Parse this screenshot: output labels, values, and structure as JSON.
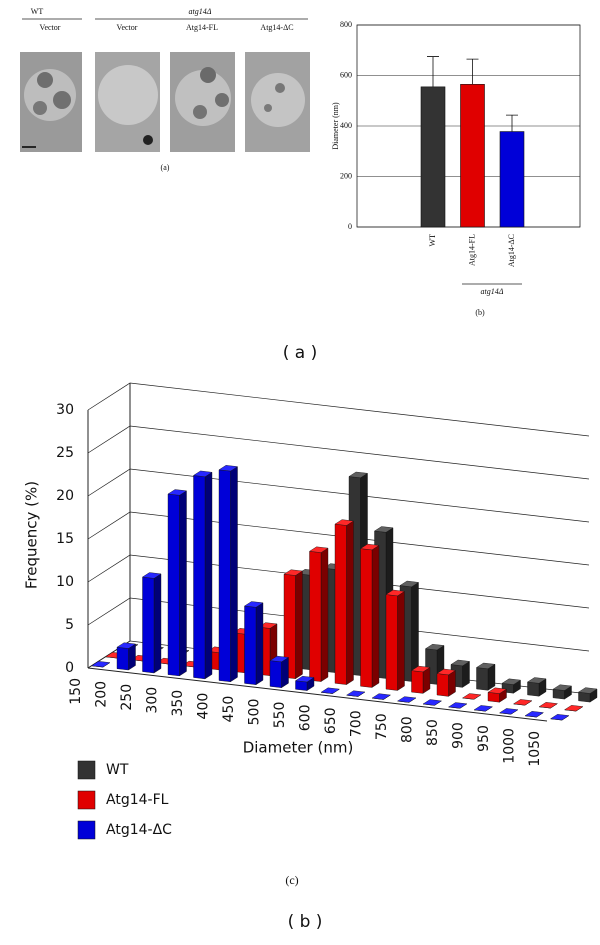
{
  "figure_a": {
    "group_labels": [
      "WT",
      "atg14Δ"
    ],
    "labels": [
      "Vector",
      "Vector",
      "Atg14-FL",
      "Atg14-ΔC"
    ],
    "caption": "(a)"
  },
  "chart_data": [
    {
      "type": "bar",
      "y_label": "Diameter (nm)",
      "categories": [
        "WT",
        "Atg14-FL",
        "Atg14-ΔC"
      ],
      "values": [
        555,
        565,
        378
      ],
      "errors": [
        120,
        100,
        65
      ],
      "colors": [
        "#333333",
        "#e00000",
        "#0000d8"
      ],
      "group_label": "atg14Δ",
      "caption": "(b)",
      "ylim": [
        0,
        800
      ],
      "yticks": [
        0,
        200,
        400,
        600,
        800
      ],
      "grid": true
    },
    {
      "type": "bar3d",
      "x_label": "Diameter (nm)",
      "y_label": "Frequency (%)",
      "caption": "(c)",
      "x": [
        150,
        200,
        250,
        300,
        350,
        400,
        450,
        500,
        550,
        600,
        650,
        700,
        750,
        800,
        850,
        900,
        950,
        1000,
        1050
      ],
      "series": [
        {
          "name": "WT",
          "color": "#333333",
          "values": [
            0,
            0,
            0,
            0,
            0,
            0,
            0,
            11,
            12,
            23,
            17,
            11,
            4,
            2.5,
            2.5,
            1,
            1.5,
            1,
            1
          ]
        },
        {
          "name": "Atg14-FL",
          "color": "#e00000",
          "values": [
            0,
            0,
            0,
            0,
            2,
            4.5,
            5.5,
            12,
            15,
            18.5,
            16,
            11,
            2.5,
            2.5,
            0,
            1,
            0,
            0,
            0
          ]
        },
        {
          "name": "Atg14-ΔC",
          "color": "#0000d8",
          "values": [
            0,
            2.5,
            11,
            21,
            23.5,
            24.5,
            9,
            3,
            1,
            0,
            0,
            0,
            0,
            0,
            0,
            0,
            0,
            0,
            0
          ]
        }
      ],
      "ylim": [
        0,
        30
      ],
      "yticks": [
        0,
        5,
        10,
        15,
        20,
        25,
        30
      ],
      "grid": true,
      "legend": "bottom"
    }
  ],
  "panel_labels": [
    "( a )",
    "( b )"
  ]
}
